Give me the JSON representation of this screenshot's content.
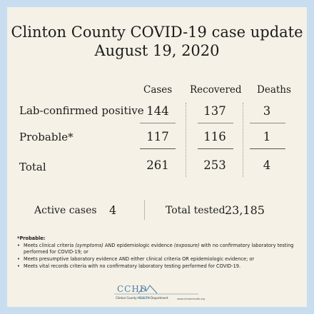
{
  "header": {
    "title": "Clinton County COVID-19 case update",
    "date": "August 19, 2020"
  },
  "table": {
    "columns": [
      "Cases",
      "Recovered",
      "Deaths"
    ],
    "rows": [
      {
        "label": "Lab-confirmed positive",
        "cases": "144",
        "recovered": "137",
        "deaths": "3"
      },
      {
        "label": "Probable*",
        "cases": "117",
        "recovered": "116",
        "deaths": "1"
      },
      {
        "label": "Total",
        "cases": "261",
        "recovered": "253",
        "deaths": "4"
      }
    ]
  },
  "summary": {
    "active_label": "Active cases",
    "active_value": "4",
    "tested_label": "Total tested",
    "tested_value": "23,185"
  },
  "footnote": {
    "heading": "*Probable:",
    "bullets": [
      {
        "pre": "Meets clinical criteria ",
        "em1": "(symptoms)",
        "mid": " AND epidemiologic evidence ",
        "em2": "(exposure)",
        "post": " with no confirmatory laboratory testing performed for COVID-19; or"
      },
      {
        "pre": "Meets presumptive laboratory evidence AND either clinical criteria OR epidemiologic evidence; or",
        "em1": "",
        "mid": "",
        "em2": "",
        "post": ""
      },
      {
        "pre": "Meets vital records criteria with no confirmatory laboratory testing performed for COVID-19.",
        "em1": "",
        "mid": "",
        "em2": "",
        "post": ""
      }
    ]
  },
  "logo": {
    "acronym": "CCHD",
    "name_pre": "Clinton County ",
    "name_strong": "HEALTH",
    "name_post": " Department",
    "url": "www.clintonhealth.org"
  },
  "colors": {
    "background": "#c8def0",
    "card": "#f5f1e6",
    "logo_blue": "#4b7ea8"
  }
}
